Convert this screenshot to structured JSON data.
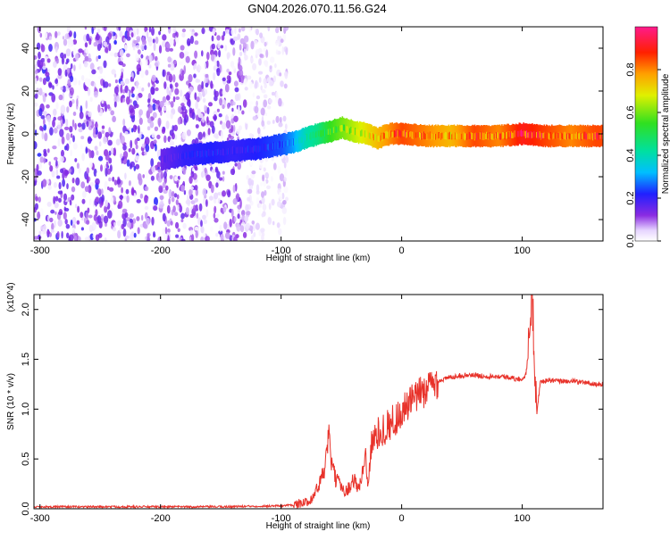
{
  "title": "GN04.2026.070.11.56.G24",
  "chart_data": [
    {
      "type": "heatmap",
      "xlabel": "Height of straight line (km)",
      "ylabel": "Frequency (Hz)",
      "xlim": [
        -305,
        167
      ],
      "ylim": [
        -50,
        50
      ],
      "x_ticks": [
        -300,
        -200,
        -100,
        0,
        100
      ],
      "y_ticks": [
        -40,
        -20,
        0,
        20,
        40
      ],
      "colorbar": {
        "label": "Normalized spectral amplitude",
        "range": [
          0,
          1
        ],
        "ticks": [
          0.0,
          0.2,
          0.4,
          0.6,
          0.8
        ],
        "tick_labels": [
          "0.0",
          "0.2",
          "0.4",
          "0.6",
          "0.8"
        ],
        "colormap": "rainbow (white → violet → blue → cyan → green → yellow → red → magenta)"
      },
      "ridge": {
        "description": "frequency of strongest amplitude vs height",
        "x": [
          -200,
          -180,
          -160,
          -140,
          -120,
          -100,
          -90,
          -80,
          -70,
          -60,
          -50,
          -40,
          -30,
          -20,
          -10,
          0,
          20,
          40,
          60,
          80,
          100,
          120,
          140,
          160
        ],
        "y": [
          -12,
          -10,
          -9,
          -8,
          -7,
          -5,
          -4,
          -2,
          0,
          1,
          3,
          1,
          0,
          -2,
          0,
          0,
          -1,
          -1,
          -1,
          -1,
          0,
          -1,
          -1,
          -1
        ],
        "amplitude": [
          0.15,
          0.2,
          0.22,
          0.2,
          0.22,
          0.25,
          0.3,
          0.4,
          0.45,
          0.55,
          0.6,
          0.65,
          0.7,
          0.75,
          0.8,
          0.85,
          0.8,
          0.75,
          0.85,
          0.8,
          0.9,
          0.85,
          0.8,
          0.85
        ]
      },
      "noise_region_x": [
        -305,
        -95
      ],
      "grid": false
    },
    {
      "type": "line",
      "xlabel": "Height of straight line (km)",
      "ylabel": "SNR (10 * v/v)",
      "y_multiplier": "(x10^4)",
      "xlim": [
        -305,
        167
      ],
      "ylim": [
        0,
        2.15
      ],
      "x_ticks": [
        -300,
        -200,
        -100,
        0,
        100
      ],
      "y_ticks": [
        0.0,
        0.5,
        1.0,
        1.5,
        2.0
      ],
      "y_tick_labels": [
        "0.0",
        "0.5",
        "1.0",
        "1.5",
        "2.0"
      ],
      "grid": false,
      "series": [
        {
          "color": "#e8322a",
          "x": [
            -305,
            -250,
            -200,
            -150,
            -100,
            -90,
            -80,
            -75,
            -70,
            -65,
            -62,
            -60,
            -58,
            -55,
            -50,
            -45,
            -40,
            -35,
            -30,
            -28,
            -25,
            -20,
            -15,
            -10,
            -5,
            0,
            10,
            20,
            30,
            40,
            50,
            60,
            70,
            80,
            90,
            95,
            100,
            103,
            105,
            107,
            108,
            110,
            112,
            115,
            120,
            130,
            140,
            150,
            160,
            167
          ],
          "y": [
            0.02,
            0.02,
            0.02,
            0.02,
            0.03,
            0.04,
            0.06,
            0.1,
            0.2,
            0.35,
            0.55,
            0.75,
            0.45,
            0.3,
            0.22,
            0.18,
            0.3,
            0.2,
            0.55,
            0.25,
            0.65,
            0.75,
            0.8,
            0.85,
            0.9,
            0.97,
            1.1,
            1.2,
            1.28,
            1.32,
            1.34,
            1.34,
            1.33,
            1.33,
            1.32,
            1.3,
            1.3,
            1.35,
            1.55,
            1.9,
            2.15,
            1.6,
            0.95,
            1.27,
            1.29,
            1.28,
            1.28,
            1.27,
            1.25,
            1.25
          ],
          "peak_band": {
            "x": [
              105,
              112
            ],
            "y_range": [
              0.7,
              2.15
            ]
          }
        }
      ]
    }
  ]
}
